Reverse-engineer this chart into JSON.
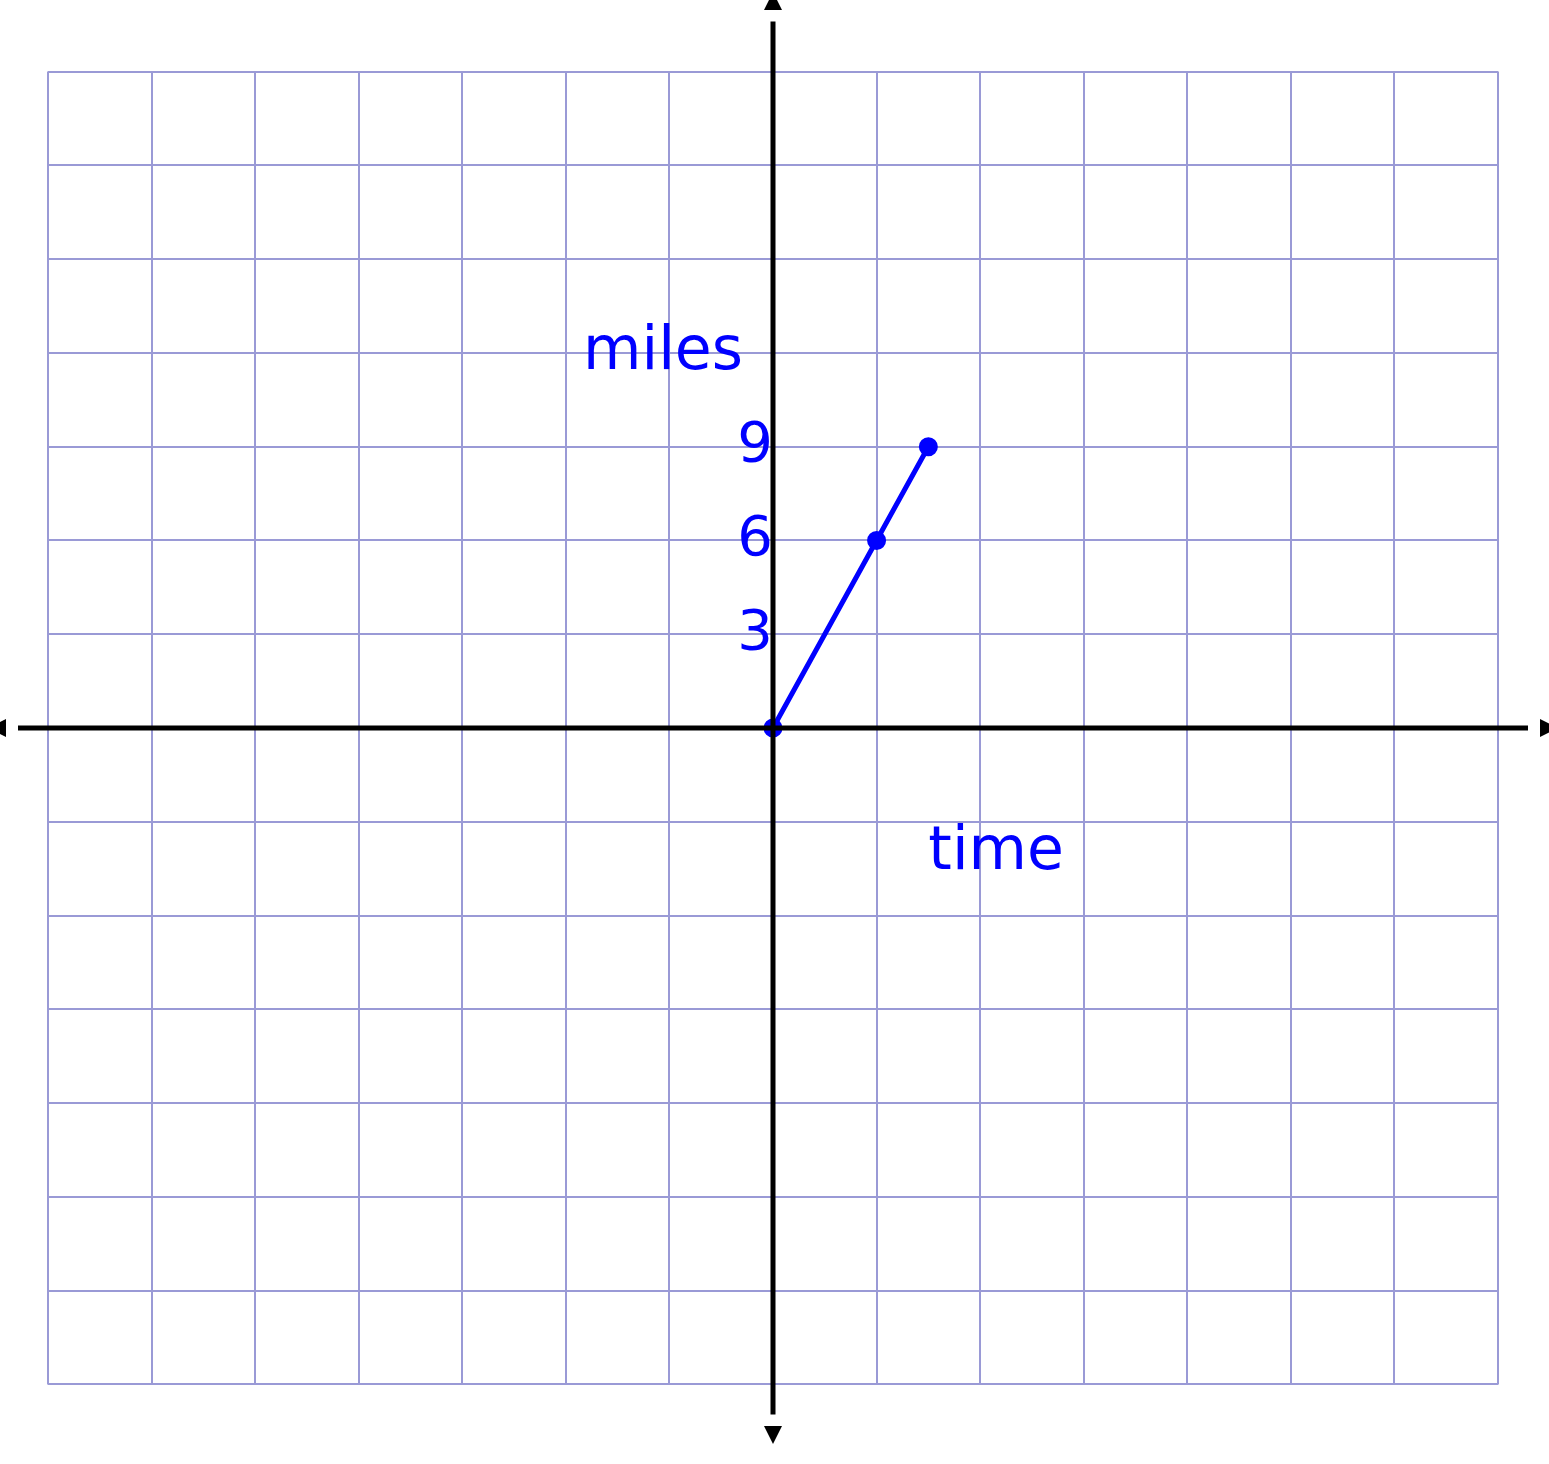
{
  "chart_data": {
    "type": "line",
    "xlabel": "time",
    "ylabel": "miles",
    "categories": [
      null,
      null,
      null,
      null,
      null,
      null,
      null,
      null,
      null,
      null,
      null,
      null,
      null,
      null,
      null,
      null,
      null,
      null,
      null,
      null,
      null,
      null,
      null,
      null,
      null,
      null,
      null,
      null,
      null
    ],
    "series": [
      {
        "color": "#0000ff",
        "values": [
          null,
          null,
          null,
          null,
          null,
          null,
          null,
          null,
          null,
          null,
          null,
          null,
          null,
          null,
          0,
          null,
          6,
          9,
          null,
          null,
          null,
          null,
          null,
          null,
          null,
          null,
          null,
          null,
          null
        ]
      }
    ],
    "ylim": [
      -21,
      21
    ],
    "yticks": [
      {
        "value": -21,
        "label": null
      },
      {
        "value": -18,
        "label": null
      },
      {
        "value": -15,
        "label": null
      },
      {
        "value": -12,
        "label": null
      },
      {
        "value": -9,
        "label": null
      },
      {
        "value": -6,
        "label": null
      },
      {
        "value": -3,
        "label": null
      },
      {
        "value": 0,
        "label": null
      },
      3,
      6,
      9,
      {
        "value": 12,
        "label": null
      },
      {
        "value": 15,
        "label": null
      },
      {
        "value": 18,
        "label": null
      },
      {
        "value": 21,
        "label": null
      }
    ],
    "tick_labels": "y",
    "grid": true,
    "legend": false,
    "marker": "circle",
    "line_style": "solid"
  }
}
